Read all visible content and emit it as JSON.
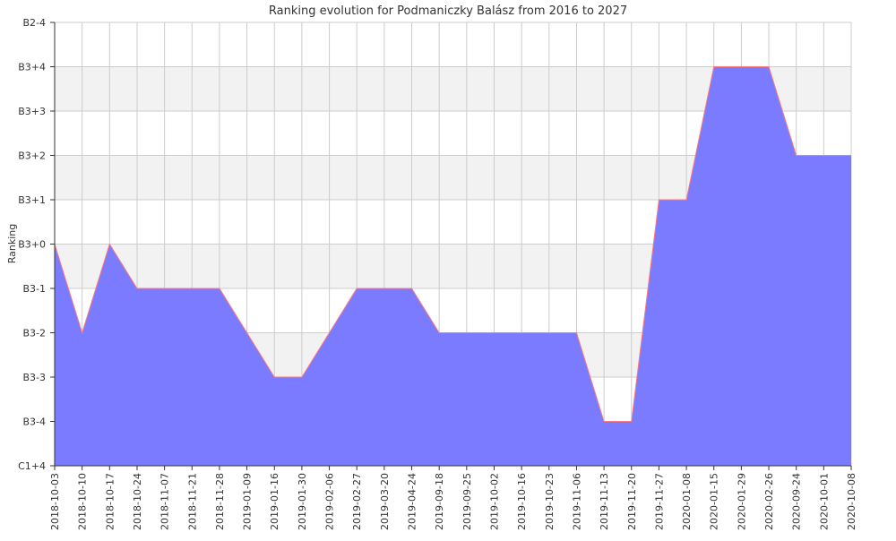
{
  "chart_data": {
    "type": "area",
    "title": "Ranking evolution for Podmaniczky Balász from 2016 to 2027",
    "xlabel": "",
    "ylabel": "Ranking",
    "y_ticks": [
      "C1+4",
      "B3-4",
      "B3-3",
      "B3-2",
      "B3-1",
      "B3+0",
      "B3+1",
      "B3+2",
      "B3+3",
      "B3+4",
      "B2-4"
    ],
    "ylim": [
      "C1+4",
      "B2-4"
    ],
    "x": [
      "2018-10-03",
      "2018-10-10",
      "2018-10-17",
      "2018-10-24",
      "2018-11-07",
      "2018-11-21",
      "2018-11-28",
      "2019-01-09",
      "2019-01-16",
      "2019-01-30",
      "2019-02-06",
      "2019-02-27",
      "2019-03-20",
      "2019-04-24",
      "2019-09-18",
      "2019-09-25",
      "2019-10-02",
      "2019-10-16",
      "2019-10-23",
      "2019-11-06",
      "2019-11-13",
      "2019-11-20",
      "2019-11-27",
      "2020-01-08",
      "2020-01-15",
      "2020-01-29",
      "2020-02-26",
      "2020-09-24",
      "2020-10-01",
      "2020-10-08"
    ],
    "series": [
      {
        "values": [
          "B3+0",
          "B3-2",
          "B3+0",
          "B3-1",
          "B3-1",
          "B3-1",
          "B3-1",
          "B3-2",
          "B3-3",
          "B3-3",
          "B3-2",
          "B3-1",
          "B3-1",
          "B3-1",
          "B3-2",
          "B3-2",
          "B3-2",
          "B3-2",
          "B3-2",
          "B3-2",
          "B3-4",
          "B3-4",
          "B3+1",
          "B3+1",
          "B3+4",
          "B3+4",
          "B3+4",
          "B3+2",
          "B3+2",
          "B3+2"
        ]
      }
    ],
    "grid": true,
    "colors": {
      "fill": "#7b7bff",
      "line": "#ff7b7b",
      "band": "#f2f2f2",
      "grid": "#cccccc",
      "axis": "#333333"
    }
  }
}
